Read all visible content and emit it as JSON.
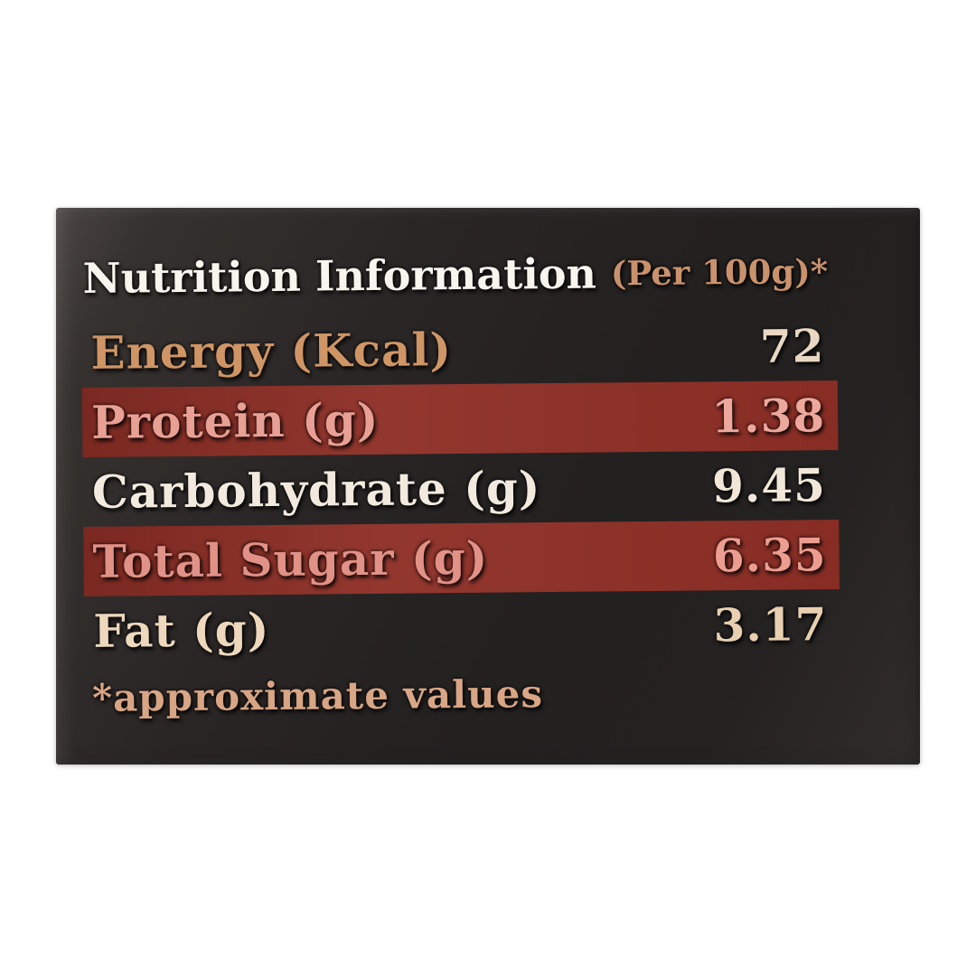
{
  "photo": {
    "background": "#ffffff"
  },
  "label": {
    "title": "Nutrition Information",
    "title_suffix": "(Per 100g)*",
    "footnote": "*approximate values",
    "colors": {
      "panel_dark": "#242121",
      "panel_light_edge": "#4a4543",
      "highlight_band": "#8e2f26",
      "title": "#f8f5ef",
      "title_suffix": "#c9926c",
      "footnote": "#d8a585"
    },
    "rows": [
      {
        "name": "Energy (Kcal)",
        "value": "72",
        "highlighted": false,
        "name_color": "#cf9565",
        "value_color": "#e8d7c2"
      },
      {
        "name": "Protein (g)",
        "value": "1.38",
        "highlighted": true,
        "name_color": "#e8a094",
        "value_color": "#eca89c"
      },
      {
        "name": "Carbohydrate (g)",
        "value": "9.45",
        "highlighted": false,
        "name_color": "#f2eade",
        "value_color": "#f0e7d8"
      },
      {
        "name": "Total Sugar (g)",
        "value": "6.35",
        "highlighted": true,
        "name_color": "#e19186",
        "value_color": "#ec9d90"
      },
      {
        "name": "Fat (g)",
        "value": "3.17",
        "highlighted": false,
        "name_color": "#edd8bd",
        "value_color": "#e8cfb1"
      }
    ]
  }
}
